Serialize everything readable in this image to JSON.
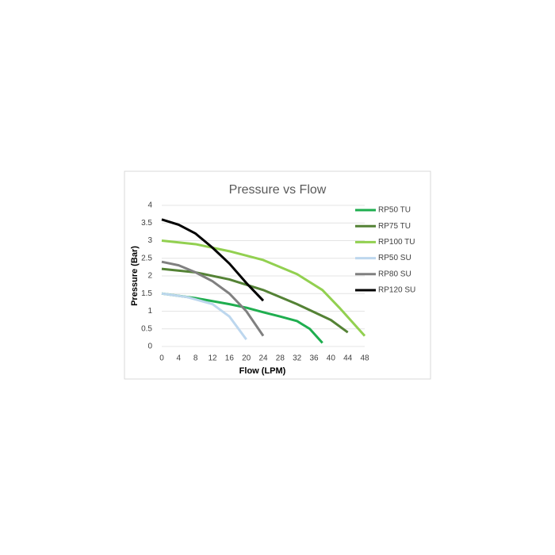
{
  "chart_data": {
    "type": "line",
    "title": "Pressure vs Flow",
    "x_label": "Flow (LPM)",
    "y_label": "Pressure (Bar)",
    "xlim": [
      0,
      48
    ],
    "xticks": [
      0,
      4,
      8,
      12,
      16,
      20,
      24,
      28,
      32,
      36,
      40,
      44,
      48
    ],
    "ylim": [
      0,
      4
    ],
    "yticks": [
      0,
      0.5,
      1,
      1.5,
      2,
      2.5,
      3,
      3.5,
      4
    ],
    "grid": true,
    "legend": "right",
    "series": [
      {
        "name": "RP50 TU",
        "color": "#1fae4f",
        "x": [
          0,
          8,
          16,
          20,
          24,
          28,
          32,
          35,
          38
        ],
        "values": [
          1.5,
          1.37,
          1.2,
          1.1,
          0.97,
          0.85,
          0.72,
          0.5,
          0.1
        ]
      },
      {
        "name": "RP75 TU",
        "color": "#548235",
        "x": [
          0,
          8,
          16,
          24,
          32,
          40,
          44
        ],
        "values": [
          2.2,
          2.1,
          1.9,
          1.6,
          1.2,
          0.75,
          0.4
        ]
      },
      {
        "name": "RP100 TU",
        "color": "#92d050",
        "x": [
          0,
          8,
          16,
          24,
          32,
          38,
          42,
          48
        ],
        "values": [
          3.0,
          2.9,
          2.7,
          2.45,
          2.05,
          1.6,
          1.1,
          0.3
        ]
      },
      {
        "name": "RP50 SU",
        "color": "#bdd7ee",
        "x": [
          0,
          6,
          12,
          16,
          20
        ],
        "values": [
          1.5,
          1.4,
          1.2,
          0.85,
          0.2
        ]
      },
      {
        "name": "RP80 SU",
        "color": "#808080",
        "x": [
          0,
          4,
          8,
          12,
          16,
          20,
          24
        ],
        "values": [
          2.4,
          2.3,
          2.1,
          1.85,
          1.5,
          1.0,
          0.3
        ]
      },
      {
        "name": "RP120 SU",
        "color": "#000000",
        "x": [
          0,
          4,
          8,
          12,
          16,
          20,
          24
        ],
        "values": [
          3.6,
          3.45,
          3.2,
          2.8,
          2.35,
          1.8,
          1.3
        ]
      }
    ]
  }
}
